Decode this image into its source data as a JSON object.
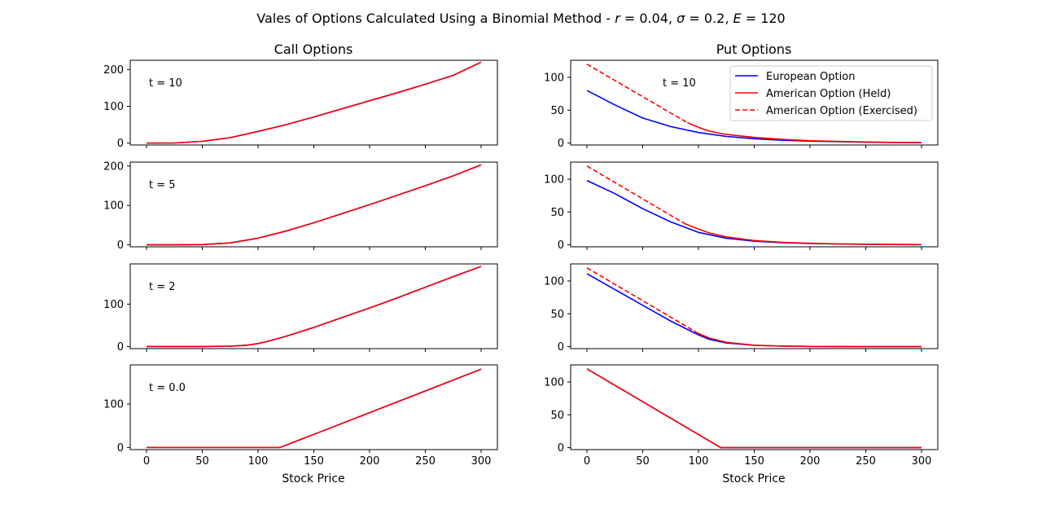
{
  "title": "Vales of Options Calculated Using a Binomial Method - r = 0.04, σ = 0.2, E = 120",
  "title_parts": {
    "prefix": "Vales of Options Calculated Using a Binomial Method - ",
    "r_var": "r",
    "r_val": " = 0.04, ",
    "sigma_var": "σ",
    "sigma_val": " = 0.2, ",
    "e_var": "E",
    "e_val": " = 120"
  },
  "columns": [
    "Call Options",
    "Put Options"
  ],
  "xlabel": "Stock Price",
  "legend": {
    "placement": "top-right of first put panel",
    "entries": [
      {
        "label": "European Option",
        "color": "#0000ff",
        "dash": "solid"
      },
      {
        "label": "American Option (Held)",
        "color": "#ff0000",
        "dash": "solid"
      },
      {
        "label": "American Option (Exercised)",
        "color": "#ff0000",
        "dash": "dashed"
      }
    ]
  },
  "chart_data": [
    {
      "type": "line",
      "column": "Call Options",
      "label": "t = 10",
      "xlim": [
        0,
        300
      ],
      "ylim": [
        -5,
        225
      ],
      "xticks": [
        0,
        50,
        100,
        150,
        200,
        250,
        300
      ],
      "yticks": [
        0,
        100,
        200
      ],
      "series": [
        {
          "name": "European Option",
          "color": "#0000ff",
          "dash": "solid",
          "x": [
            0,
            25,
            50,
            75,
            100,
            125,
            150,
            175,
            200,
            225,
            250,
            275,
            300
          ],
          "y": [
            0,
            0.5,
            5,
            15,
            32,
            50,
            71,
            93,
            115,
            137,
            160,
            184,
            220
          ]
        },
        {
          "name": "American Option (Held)",
          "color": "#ff0000",
          "dash": "solid",
          "x": [
            0,
            25,
            50,
            75,
            100,
            125,
            150,
            175,
            200,
            225,
            250,
            275,
            300
          ],
          "y": [
            0,
            0.5,
            5,
            15,
            32,
            50,
            71,
            93,
            115,
            137,
            160,
            184,
            220
          ]
        }
      ]
    },
    {
      "type": "line",
      "column": "Put Options",
      "label": "t = 10",
      "xlim": [
        0,
        300
      ],
      "ylim": [
        -3,
        126
      ],
      "xticks": [
        0,
        50,
        100,
        150,
        200,
        250,
        300
      ],
      "yticks": [
        0,
        50,
        100
      ],
      "series": [
        {
          "name": "European Option",
          "color": "#0000ff",
          "dash": "solid",
          "x": [
            0,
            25,
            50,
            75,
            100,
            125,
            150,
            175,
            200,
            225,
            250,
            275,
            300
          ],
          "y": [
            80,
            58,
            38,
            25,
            16,
            10,
            6.5,
            4.2,
            2.8,
            1.9,
            1.2,
            0.8,
            0.5
          ]
        },
        {
          "name": "American Option (Held)",
          "color": "#ff0000",
          "dash": "solid",
          "x": [
            90,
            100,
            110,
            125,
            150,
            175,
            200,
            225,
            250,
            275,
            300
          ],
          "y": [
            31,
            24,
            18,
            13,
            8.5,
            5.5,
            3.5,
            2.4,
            1.6,
            1.0,
            0.6
          ]
        },
        {
          "name": "American Option (Exercised)",
          "color": "#ff0000",
          "dash": "dashed",
          "x": [
            0,
            90
          ],
          "y": [
            120,
            31
          ]
        }
      ]
    },
    {
      "type": "line",
      "column": "Call Options",
      "label": "t = 5",
      "xlim": [
        0,
        300
      ],
      "ylim": [
        -5,
        210
      ],
      "xticks": [
        0,
        50,
        100,
        150,
        200,
        250,
        300
      ],
      "yticks": [
        0,
        100,
        200
      ],
      "series": [
        {
          "name": "European Option",
          "color": "#0000ff",
          "dash": "solid",
          "x": [
            0,
            25,
            50,
            75,
            100,
            125,
            150,
            175,
            200,
            225,
            250,
            275,
            300
          ],
          "y": [
            0,
            0,
            0.5,
            5,
            17,
            35,
            56,
            79,
            102,
            126,
            150,
            175,
            203
          ]
        },
        {
          "name": "American Option (Held)",
          "color": "#ff0000",
          "dash": "solid",
          "x": [
            0,
            25,
            50,
            75,
            100,
            125,
            150,
            175,
            200,
            225,
            250,
            275,
            300
          ],
          "y": [
            0,
            0,
            0.5,
            5,
            17,
            35,
            56,
            79,
            102,
            126,
            150,
            175,
            203
          ]
        }
      ]
    },
    {
      "type": "line",
      "column": "Put Options",
      "label": "",
      "xlim": [
        0,
        300
      ],
      "ylim": [
        -3,
        126
      ],
      "xticks": [
        0,
        50,
        100,
        150,
        200,
        250,
        300
      ],
      "yticks": [
        0,
        50,
        100
      ],
      "series": [
        {
          "name": "European Option",
          "color": "#0000ff",
          "dash": "solid",
          "x": [
            0,
            25,
            50,
            75,
            100,
            125,
            150,
            175,
            200,
            225,
            250,
            275,
            300
          ],
          "y": [
            98,
            78,
            55,
            35,
            19,
            10,
            5.5,
            3.2,
            2,
            1.2,
            0.8,
            0.5,
            0.3
          ]
        },
        {
          "name": "American Option (Held)",
          "color": "#ff0000",
          "dash": "solid",
          "x": [
            88,
            100,
            110,
            125,
            150,
            175,
            200,
            225,
            250,
            275,
            300
          ],
          "y": [
            32,
            24,
            18,
            12,
            6.5,
            3.8,
            2.3,
            1.5,
            1.0,
            0.6,
            0.3
          ]
        },
        {
          "name": "American Option (Exercised)",
          "color": "#ff0000",
          "dash": "dashed",
          "x": [
            0,
            88
          ],
          "y": [
            120,
            32
          ]
        }
      ]
    },
    {
      "type": "line",
      "column": "Call Options",
      "label": "t = 2",
      "xlim": [
        0,
        300
      ],
      "ylim": [
        -5,
        195
      ],
      "xticks": [
        0,
        50,
        100,
        150,
        200,
        250,
        300
      ],
      "yticks": [
        0,
        100
      ],
      "series": [
        {
          "name": "European Option",
          "color": "#0000ff",
          "dash": "solid",
          "x": [
            0,
            25,
            50,
            75,
            90,
            100,
            110,
            125,
            150,
            175,
            200,
            225,
            250,
            275,
            300
          ],
          "y": [
            0,
            0,
            0,
            0.5,
            3,
            7,
            13,
            24,
            45,
            68,
            91,
            115,
            140,
            165,
            189
          ]
        },
        {
          "name": "American Option (Held)",
          "color": "#ff0000",
          "dash": "solid",
          "x": [
            0,
            25,
            50,
            75,
            90,
            100,
            110,
            125,
            150,
            175,
            200,
            225,
            250,
            275,
            300
          ],
          "y": [
            0,
            0,
            0,
            0.5,
            3,
            7,
            13,
            24,
            45,
            68,
            91,
            115,
            140,
            165,
            189
          ]
        }
      ]
    },
    {
      "type": "line",
      "column": "Put Options",
      "label": "",
      "xlim": [
        0,
        300
      ],
      "ylim": [
        -3,
        126
      ],
      "xticks": [
        0,
        50,
        100,
        150,
        200,
        250,
        300
      ],
      "yticks": [
        0,
        50,
        100
      ],
      "series": [
        {
          "name": "European Option",
          "color": "#0000ff",
          "dash": "solid",
          "x": [
            0,
            25,
            50,
            75,
            100,
            110,
            125,
            150,
            175,
            200,
            250,
            300
          ],
          "y": [
            111,
            87,
            63,
            39,
            18,
            11,
            5.5,
            2,
            0.8,
            0.3,
            0,
            0
          ]
        },
        {
          "name": "American Option (Held)",
          "color": "#ff0000",
          "dash": "solid",
          "x": [
            96,
            100,
            110,
            125,
            150,
            175,
            200,
            250,
            300
          ],
          "y": [
            24,
            20,
            13,
            6.5,
            2.2,
            0.8,
            0.3,
            0,
            0
          ]
        },
        {
          "name": "American Option (Exercised)",
          "color": "#ff0000",
          "dash": "dashed",
          "x": [
            0,
            96
          ],
          "y": [
            120,
            24
          ]
        }
      ]
    },
    {
      "type": "line",
      "column": "Call Options",
      "label": "t = 0.0",
      "xlim": [
        0,
        300
      ],
      "ylim": [
        -5,
        190
      ],
      "xticks": [
        0,
        50,
        100,
        150,
        200,
        250,
        300
      ],
      "yticks": [
        0,
        100
      ],
      "series": [
        {
          "name": "European Option",
          "color": "#0000ff",
          "dash": "solid",
          "x": [
            0,
            120,
            300
          ],
          "y": [
            0,
            0,
            180
          ]
        },
        {
          "name": "American Option (Held)",
          "color": "#ff0000",
          "dash": "solid",
          "x": [
            0,
            120,
            300
          ],
          "y": [
            0,
            0,
            180
          ]
        }
      ]
    },
    {
      "type": "line",
      "column": "Put Options",
      "label": "",
      "xlim": [
        0,
        300
      ],
      "ylim": [
        -3,
        126
      ],
      "xticks": [
        0,
        50,
        100,
        150,
        200,
        250,
        300
      ],
      "yticks": [
        0,
        50,
        100
      ],
      "series": [
        {
          "name": "European Option",
          "color": "#0000ff",
          "dash": "solid",
          "x": [
            0,
            120,
            300
          ],
          "y": [
            120,
            0,
            0
          ]
        },
        {
          "name": "American Option (Held)",
          "color": "#ff0000",
          "dash": "solid",
          "x": [
            0,
            120,
            300
          ],
          "y": [
            120,
            0,
            0
          ]
        }
      ]
    }
  ]
}
